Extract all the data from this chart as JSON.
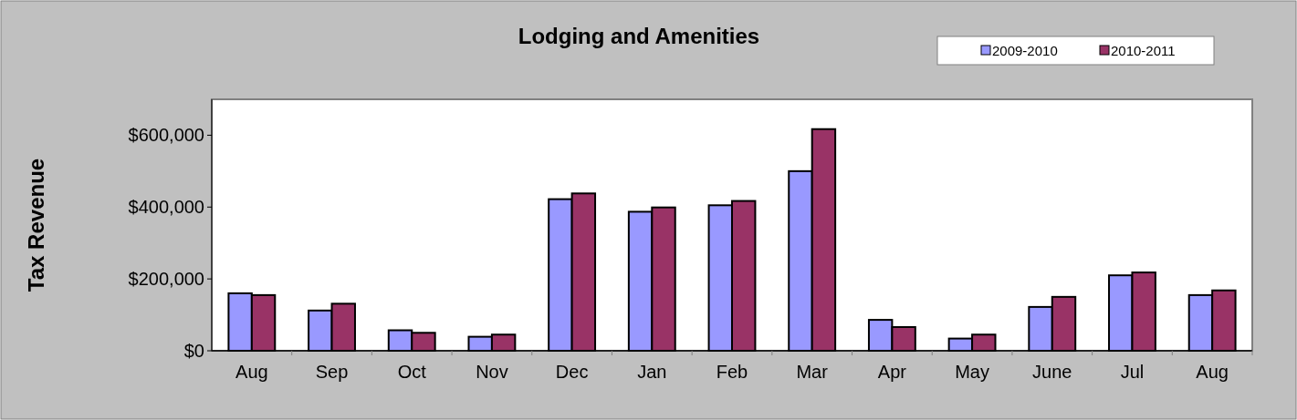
{
  "chart_data": {
    "type": "bar",
    "title": "Lodging and Amenities",
    "ylabel": "Tax Revenue",
    "categories": [
      "Aug",
      "Sep",
      "Oct",
      "Nov",
      "Dec",
      "Jan",
      "Feb",
      "Mar",
      "Apr",
      "May",
      "June",
      "Jul",
      "Aug"
    ],
    "series": [
      {
        "name": "2009-2010",
        "color": "#9999ff",
        "values": [
          160000,
          112000,
          57000,
          39000,
          422000,
          387000,
          405000,
          500000,
          86000,
          34000,
          122000,
          210000,
          155000
        ]
      },
      {
        "name": "2010-2011",
        "color": "#993366",
        "values": [
          155000,
          131000,
          50000,
          45000,
          438000,
          399000,
          417000,
          617000,
          66000,
          45000,
          150000,
          218000,
          168000
        ]
      }
    ],
    "ylim": [
      0,
      700000
    ],
    "yticks": [
      {
        "value": 0,
        "label": "$0"
      },
      {
        "value": 200000,
        "label": "$200,000"
      },
      {
        "value": 400000,
        "label": "$400,000"
      },
      {
        "value": 600000,
        "label": "$600,000"
      }
    ],
    "grid": false,
    "legend": "top right"
  }
}
